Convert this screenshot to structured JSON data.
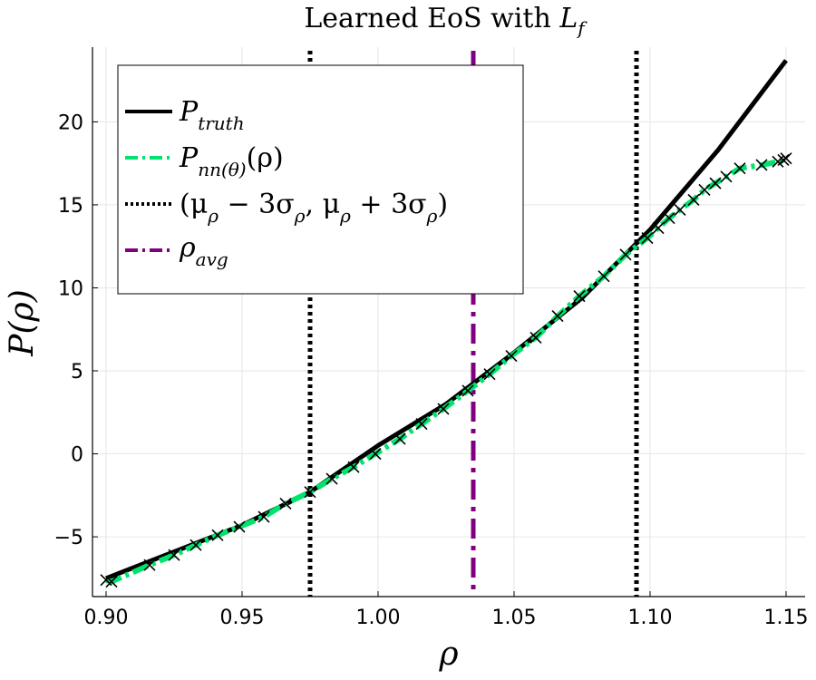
{
  "chart_data": {
    "type": "line",
    "title": "Learned EoS with ",
    "title_symbol": "L",
    "title_symbol_sub": "f",
    "xlabel": "ρ",
    "ylabel": "P(ρ)",
    "xlim": [
      0.895,
      1.157
    ],
    "ylim": [
      -8.6,
      24.5
    ],
    "xticks": [
      0.9,
      0.95,
      1.0,
      1.05,
      1.1,
      1.15
    ],
    "xtick_labels": [
      "0.90",
      "0.95",
      "1.00",
      "1.05",
      "1.10",
      "1.15"
    ],
    "yticks": [
      -5,
      0,
      5,
      10,
      15,
      20
    ],
    "ytick_labels": [
      "−5",
      "0",
      "5",
      "10",
      "15",
      "20"
    ],
    "grid": true,
    "legend_position": "top-left",
    "series": [
      {
        "name": "P_truth",
        "legend_main": "P",
        "legend_sub": "truth",
        "style": "solid",
        "color": "#000000",
        "x": [
          0.9,
          0.925,
          0.95,
          0.975,
          1.0,
          1.025,
          1.05,
          1.075,
          1.1,
          1.125,
          1.15
        ],
        "y": [
          -7.5,
          -5.9,
          -4.3,
          -2.3,
          0.5,
          3.0,
          6.1,
          9.4,
          13.5,
          18.3,
          23.7
        ]
      },
      {
        "name": "P_nn(θ)(ρ)",
        "legend_main": "P",
        "legend_sub": "nn(θ)",
        "legend_tail": "(ρ)",
        "style": "dashdot",
        "color": "#00e36d",
        "marker": "x",
        "x": [
          0.9,
          0.902,
          0.916,
          0.925,
          0.933,
          0.941,
          0.949,
          0.958,
          0.966,
          0.975,
          0.983,
          0.991,
          0.999,
          1.008,
          1.016,
          1.024,
          1.033,
          1.041,
          1.049,
          1.058,
          1.066,
          1.074,
          1.083,
          1.091,
          1.099,
          1.103,
          1.107,
          1.111,
          1.116,
          1.12,
          1.124,
          1.128,
          1.133,
          1.141,
          1.147,
          1.149,
          1.15
        ],
        "y": [
          -7.6,
          -7.7,
          -6.7,
          -6.1,
          -5.5,
          -4.9,
          -4.4,
          -3.8,
          -3.0,
          -2.3,
          -1.5,
          -0.8,
          0.0,
          0.9,
          1.8,
          2.7,
          3.8,
          4.8,
          5.9,
          7.0,
          8.3,
          9.5,
          10.7,
          12.0,
          13.0,
          13.6,
          14.2,
          14.7,
          15.3,
          15.9,
          16.3,
          16.7,
          17.2,
          17.4,
          17.6,
          17.7,
          17.8
        ]
      },
      {
        "name": "(μ_ρ − 3σ_ρ, μ_ρ + 3σ_ρ)",
        "legend_text": "(μ",
        "legend_text_b": " − 3σ",
        "legend_text_c": ", μ",
        "legend_text_d": " + 3σ",
        "legend_text_e": ")",
        "legend_sub": "ρ",
        "style": "dotted",
        "color": "#000000",
        "vlines": [
          0.975,
          1.095
        ]
      },
      {
        "name": "ρ_avg",
        "legend_main": "ρ",
        "legend_sub": "avg",
        "style": "dashdot",
        "color": "#800080",
        "vlines": [
          1.035
        ]
      }
    ]
  }
}
